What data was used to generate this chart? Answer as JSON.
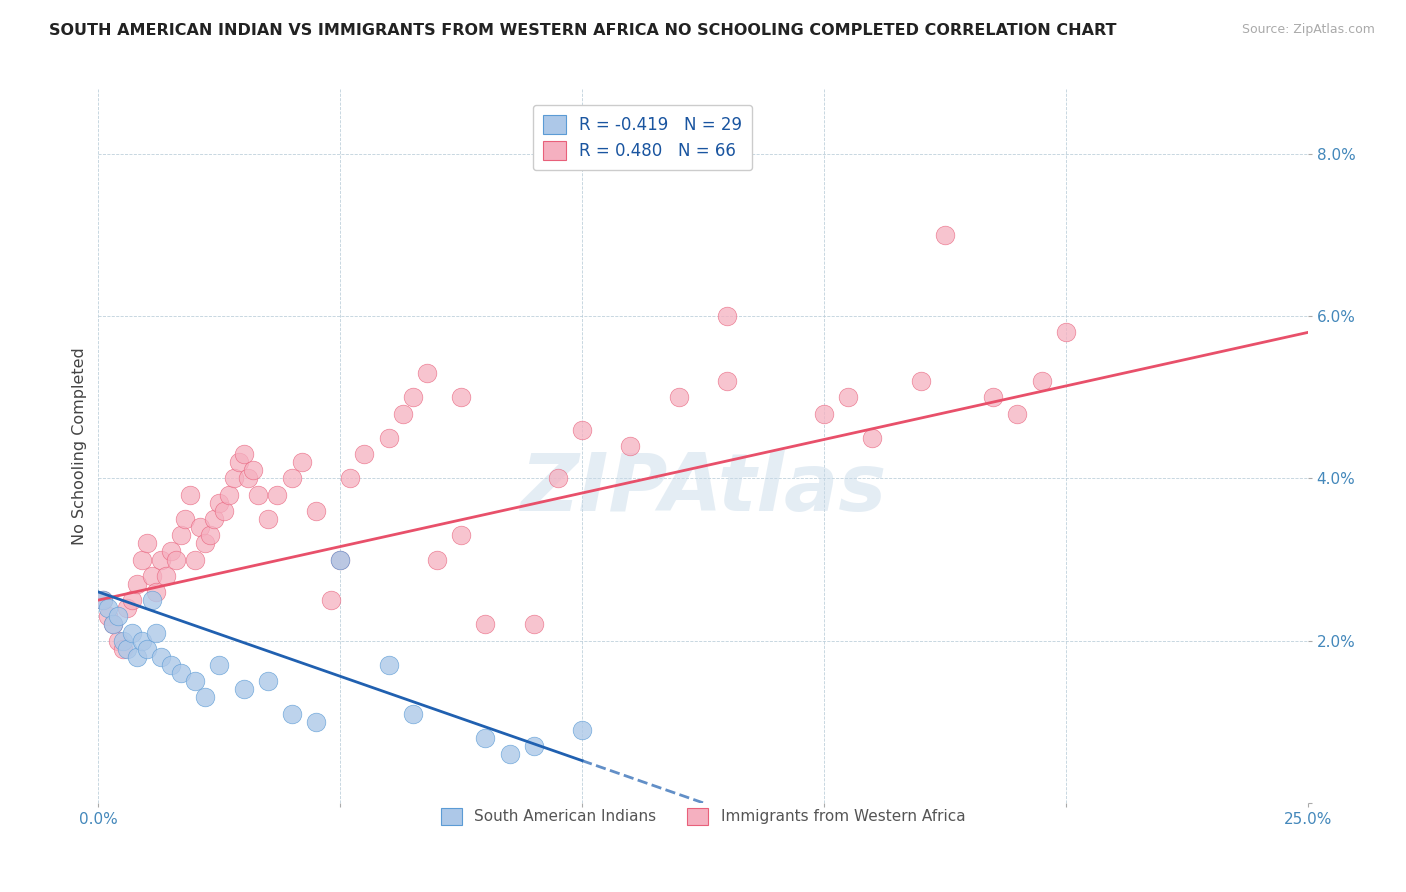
{
  "title": "SOUTH AMERICAN INDIAN VS IMMIGRANTS FROM WESTERN AFRICA NO SCHOOLING COMPLETED CORRELATION CHART",
  "source": "Source: ZipAtlas.com",
  "ylabel": "No Schooling Completed",
  "xmin": 0.0,
  "xmax": 0.25,
  "ymin": 0.0,
  "ymax": 0.088,
  "yticks": [
    0.0,
    0.02,
    0.04,
    0.06,
    0.08
  ],
  "ytick_labels": [
    "",
    "2.0%",
    "4.0%",
    "6.0%",
    "8.0%"
  ],
  "xticks": [
    0.0,
    0.05,
    0.1,
    0.15,
    0.2,
    0.25
  ],
  "xtick_labels": [
    "0.0%",
    "",
    "",
    "",
    "",
    "25.0%"
  ],
  "blue_fill": "#adc8e8",
  "blue_edge": "#5b9bd5",
  "pink_fill": "#f5b0c0",
  "pink_edge": "#e8607a",
  "blue_line_color": "#2060b0",
  "pink_line_color": "#e8506a",
  "watermark": "ZIPAtlas",
  "R_blue": "-0.419",
  "N_blue": "29",
  "R_pink": "0.480",
  "N_pink": "66",
  "label_blue": "South American Indians",
  "label_pink": "Immigrants from Western Africa",
  "blue_x": [
    0.001,
    0.002,
    0.003,
    0.004,
    0.005,
    0.006,
    0.007,
    0.008,
    0.009,
    0.01,
    0.011,
    0.012,
    0.013,
    0.015,
    0.017,
    0.02,
    0.022,
    0.025,
    0.03,
    0.035,
    0.04,
    0.045,
    0.05,
    0.06,
    0.065,
    0.08,
    0.085,
    0.09,
    0.1
  ],
  "blue_y": [
    0.025,
    0.024,
    0.022,
    0.023,
    0.02,
    0.019,
    0.021,
    0.018,
    0.02,
    0.019,
    0.025,
    0.021,
    0.018,
    0.017,
    0.016,
    0.015,
    0.013,
    0.017,
    0.014,
    0.015,
    0.011,
    0.01,
    0.03,
    0.017,
    0.011,
    0.008,
    0.006,
    0.007,
    0.009
  ],
  "pink_x": [
    0.001,
    0.002,
    0.003,
    0.004,
    0.005,
    0.006,
    0.007,
    0.008,
    0.009,
    0.01,
    0.011,
    0.012,
    0.013,
    0.014,
    0.015,
    0.016,
    0.017,
    0.018,
    0.019,
    0.02,
    0.021,
    0.022,
    0.023,
    0.024,
    0.025,
    0.026,
    0.027,
    0.028,
    0.029,
    0.03,
    0.031,
    0.032,
    0.033,
    0.035,
    0.037,
    0.04,
    0.042,
    0.045,
    0.048,
    0.05,
    0.052,
    0.055,
    0.06,
    0.063,
    0.065,
    0.068,
    0.07,
    0.075,
    0.08,
    0.09,
    0.095,
    0.1,
    0.11,
    0.12,
    0.13,
    0.15,
    0.155,
    0.16,
    0.17,
    0.175,
    0.185,
    0.19,
    0.195,
    0.2,
    0.13,
    0.075
  ],
  "pink_y": [
    0.025,
    0.023,
    0.022,
    0.02,
    0.019,
    0.024,
    0.025,
    0.027,
    0.03,
    0.032,
    0.028,
    0.026,
    0.03,
    0.028,
    0.031,
    0.03,
    0.033,
    0.035,
    0.038,
    0.03,
    0.034,
    0.032,
    0.033,
    0.035,
    0.037,
    0.036,
    0.038,
    0.04,
    0.042,
    0.043,
    0.04,
    0.041,
    0.038,
    0.035,
    0.038,
    0.04,
    0.042,
    0.036,
    0.025,
    0.03,
    0.04,
    0.043,
    0.045,
    0.048,
    0.05,
    0.053,
    0.03,
    0.033,
    0.022,
    0.022,
    0.04,
    0.046,
    0.044,
    0.05,
    0.06,
    0.048,
    0.05,
    0.045,
    0.052,
    0.07,
    0.05,
    0.048,
    0.052,
    0.058,
    0.052,
    0.05
  ]
}
